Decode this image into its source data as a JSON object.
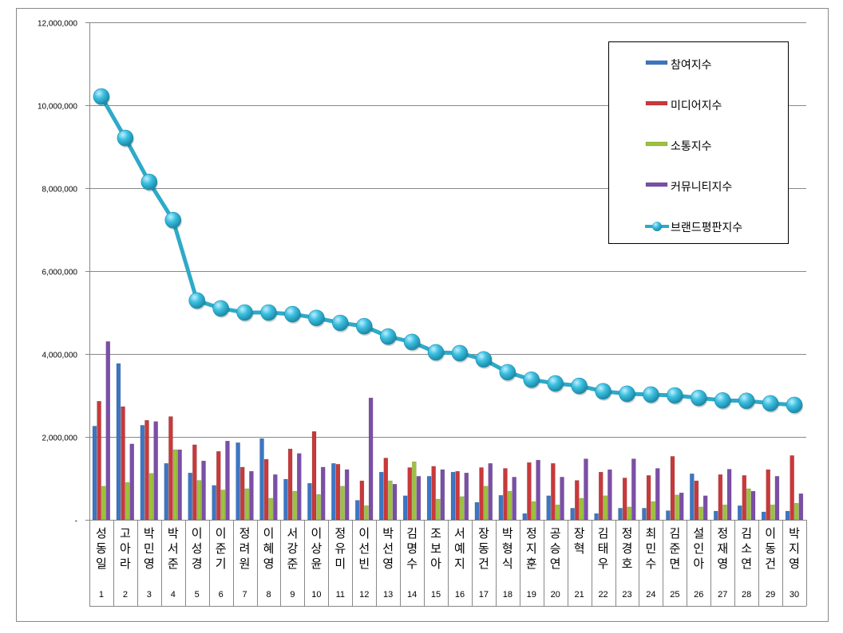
{
  "chart_data": {
    "type": "bar",
    "title": "",
    "xlabel": "",
    "ylabel": "",
    "ylim": [
      0,
      12000000
    ],
    "yticks": [
      0,
      2000000,
      4000000,
      6000000,
      8000000,
      10000000,
      12000000
    ],
    "ytick_labels": [
      "-",
      "2,000,000",
      "4,000,000",
      "6,000,000",
      "8,000,000",
      "10,000,000",
      "12,000,000"
    ],
    "grid": true,
    "legend_position": "top-right",
    "categories": [
      "성동일",
      "고아라",
      "박민영",
      "박서준",
      "이성경",
      "이준기",
      "정려원",
      "이혜영",
      "서강준",
      "이상윤",
      "정유미",
      "이선빈",
      "박선영",
      "김명수",
      "조보아",
      "서예지",
      "장동건",
      "박형식",
      "정지훈",
      "공승연",
      "장혁",
      "김태우",
      "정경호",
      "최민수",
      "김준면",
      "설인아",
      "정재영",
      "김소연",
      "이동건",
      "박지영"
    ],
    "ranks": [
      "1",
      "2",
      "3",
      "4",
      "5",
      "6",
      "7",
      "8",
      "9",
      "10",
      "11",
      "12",
      "13",
      "14",
      "15",
      "16",
      "17",
      "18",
      "19",
      "20",
      "21",
      "22",
      "23",
      "24",
      "25",
      "26",
      "27",
      "28",
      "29",
      "30"
    ],
    "series": [
      {
        "name": "참여지수",
        "type": "bar",
        "color": "#3c76c4",
        "values": [
          2260000,
          3770000,
          2280000,
          1360000,
          1130000,
          830000,
          1860000,
          1960000,
          980000,
          880000,
          1360000,
          470000,
          1150000,
          580000,
          1050000,
          1150000,
          420000,
          590000,
          150000,
          580000,
          280000,
          150000,
          280000,
          280000,
          220000,
          1110000,
          210000,
          340000,
          190000,
          210000
        ]
      },
      {
        "name": "미디어지수",
        "type": "bar",
        "color": "#c9393a",
        "values": [
          2860000,
          2730000,
          2400000,
          2490000,
          1810000,
          1650000,
          1270000,
          1460000,
          1710000,
          2130000,
          1340000,
          940000,
          1490000,
          1260000,
          1290000,
          1170000,
          1260000,
          1240000,
          1380000,
          1360000,
          950000,
          1150000,
          1010000,
          1070000,
          1530000,
          940000,
          1090000,
          1070000,
          1210000,
          1550000
        ]
      },
      {
        "name": "소통지수",
        "type": "bar",
        "color": "#9cc23c",
        "values": [
          810000,
          900000,
          1120000,
          1690000,
          950000,
          720000,
          750000,
          520000,
          690000,
          610000,
          810000,
          340000,
          940000,
          1400000,
          500000,
          560000,
          810000,
          690000,
          440000,
          360000,
          520000,
          580000,
          310000,
          440000,
          600000,
          310000,
          360000,
          750000,
          360000,
          400000
        ]
      },
      {
        "name": "커뮤니티지수",
        "type": "bar",
        "color": "#7b4fa6",
        "values": [
          4300000,
          1830000,
          2370000,
          1690000,
          1420000,
          1900000,
          1170000,
          1090000,
          1600000,
          1270000,
          1210000,
          2940000,
          860000,
          1050000,
          1210000,
          1130000,
          1360000,
          1030000,
          1440000,
          1030000,
          1470000,
          1210000,
          1470000,
          1240000,
          650000,
          580000,
          1220000,
          690000,
          1050000,
          630000
        ]
      },
      {
        "name": "브랜드평판지수",
        "type": "line",
        "color": "#2eaac8",
        "values": [
          10210000,
          9210000,
          8150000,
          7230000,
          5290000,
          5100000,
          5000000,
          5000000,
          4960000,
          4870000,
          4750000,
          4670000,
          4420000,
          4290000,
          4040000,
          4020000,
          3870000,
          3560000,
          3380000,
          3290000,
          3230000,
          3100000,
          3040000,
          3020000,
          3000000,
          2940000,
          2880000,
          2870000,
          2810000,
          2770000
        ]
      }
    ]
  }
}
